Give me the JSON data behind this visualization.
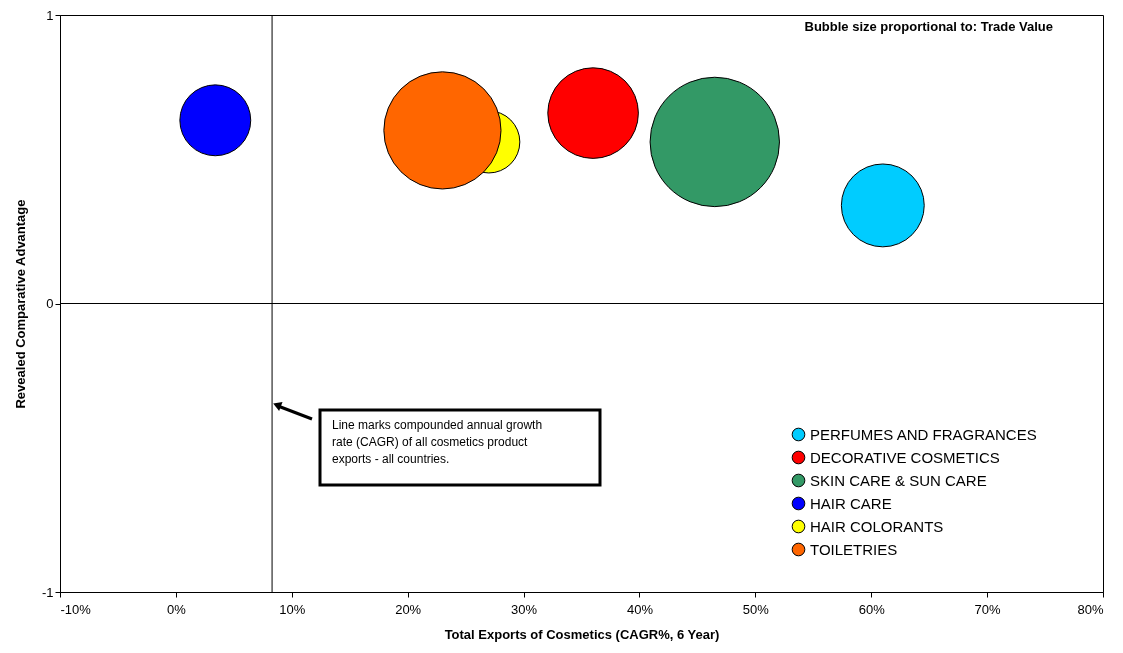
{
  "chart_data": {
    "type": "bubble",
    "xlabel": "Total Exports of Cosmetics (CAGR%, 6 Year)",
    "ylabel": "Revealed Comparative Advantage",
    "xlim": [
      -10,
      80
    ],
    "xticks": [
      {
        "value": -10,
        "label": "-10%"
      },
      {
        "value": 0,
        "label": "0%"
      },
      {
        "value": 10,
        "label": "10%"
      },
      {
        "value": 20,
        "label": "20%"
      },
      {
        "value": 30,
        "label": "30%"
      },
      {
        "value": 40,
        "label": "40%"
      },
      {
        "value": 50,
        "label": "50%"
      },
      {
        "value": 60,
        "label": "60%"
      },
      {
        "value": 70,
        "label": "70%"
      },
      {
        "value": 80,
        "label": "80%"
      }
    ],
    "ylim": [
      -1,
      1
    ],
    "yticks": [
      -1,
      0,
      1
    ],
    "grid": false,
    "legend": "bottom right",
    "series": [
      {
        "name": "PERFUMES AND FRAGRANCES",
        "color": "#00ccff",
        "x": [
          61
        ],
        "values": [
          0.34
        ],
        "sizes": [
          0.41
        ]
      },
      {
        "name": "DECORATIVE COSMETICS",
        "color": "#ff0000",
        "x": [
          36
        ],
        "values": [
          0.66
        ],
        "sizes": [
          0.49
        ]
      },
      {
        "name": "SKIN CARE & SUN CARE",
        "color": "#339966",
        "x": [
          46.5
        ],
        "values": [
          0.56
        ],
        "sizes": [
          1
        ]
      },
      {
        "name": "HAIR CARE",
        "color": "#0000ff",
        "x": [
          3.4
        ],
        "values": [
          0.635
        ],
        "sizes": [
          0.3
        ]
      },
      {
        "name": "HAIR COLORANTS",
        "color": "#ffff00",
        "x": [
          27
        ],
        "values": [
          0.56
        ],
        "sizes": [
          0.23
        ]
      },
      {
        "name": "TOILETRIES",
        "color": "#ff6600",
        "x": [
          23
        ],
        "values": [
          0.6
        ],
        "sizes": [
          0.82
        ]
      }
    ],
    "ref_lines": [
      {
        "axis": "x",
        "value": 8.3,
        "color": "#000000"
      },
      {
        "axis": "y",
        "value": 0,
        "color": "#000000"
      }
    ],
    "annotations": [
      "Bubble size proportional to: Trade Value",
      "Line marks compounded annual growth rate (CAGR) of all cosmetics product exports - all countries."
    ]
  }
}
